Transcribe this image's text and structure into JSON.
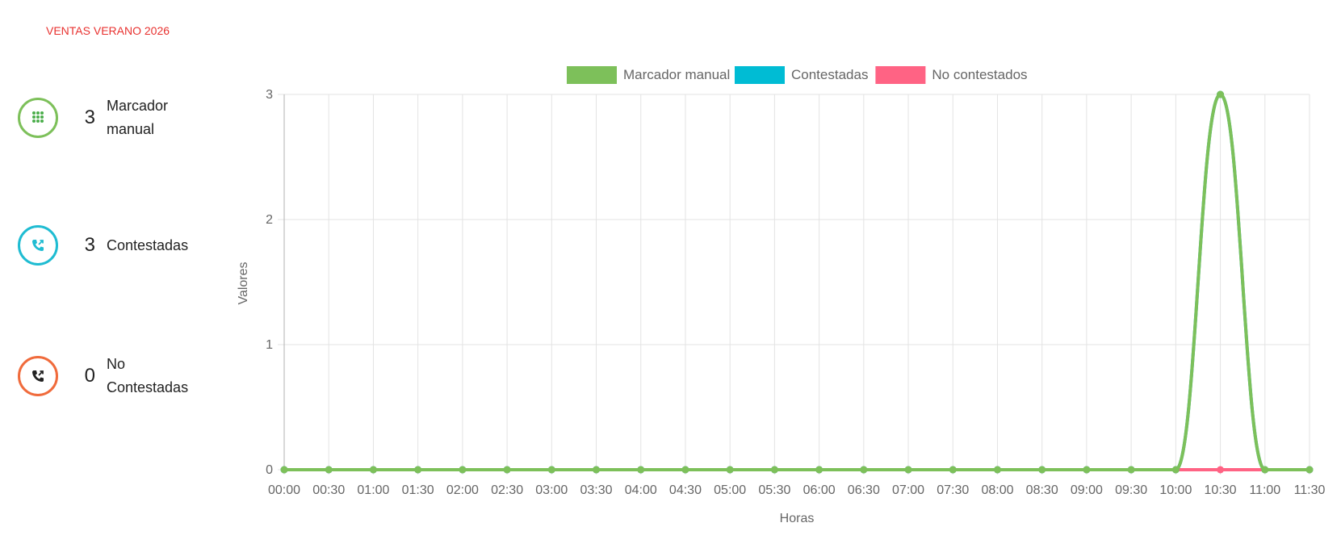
{
  "header": {
    "title": "VENTAS VERANO 2026"
  },
  "stats": [
    {
      "count": "3",
      "label": "Marcador manual",
      "icon": "dialpad-icon",
      "color": "#7dc05a"
    },
    {
      "count": "3",
      "label": "Contestadas",
      "icon": "incoming-call-icon",
      "color": "#1fbcd2"
    },
    {
      "count": "0",
      "label": "No Contestadas",
      "icon": "outgoing-call-icon",
      "color": "#f06b3c"
    }
  ],
  "chart_data": {
    "type": "line",
    "xlabel": "Horas",
    "ylabel": "Valores",
    "categories": [
      "00:00",
      "00:30",
      "01:00",
      "01:30",
      "02:00",
      "02:30",
      "03:00",
      "03:30",
      "04:00",
      "04:30",
      "05:00",
      "05:30",
      "06:00",
      "06:30",
      "07:00",
      "07:30",
      "08:00",
      "08:30",
      "09:00",
      "09:30",
      "10:00",
      "10:30",
      "11:00",
      "11:30"
    ],
    "ylim": [
      0,
      3
    ],
    "yticks": [
      0,
      1,
      2,
      3
    ],
    "grid": true,
    "legend_position": "top-center",
    "series": [
      {
        "name": "Marcador manual",
        "color": "#7dc05a",
        "values": [
          0,
          0,
          0,
          0,
          0,
          0,
          0,
          0,
          0,
          0,
          0,
          0,
          0,
          0,
          0,
          0,
          0,
          0,
          0,
          0,
          0,
          3,
          0,
          0
        ]
      },
      {
        "name": "Contestadas",
        "color": "#00bcd4",
        "values": [
          0,
          0,
          0,
          0,
          0,
          0,
          0,
          0,
          0,
          0,
          0,
          0,
          0,
          0,
          0,
          0,
          0,
          0,
          0,
          0,
          0,
          3,
          0,
          0
        ]
      },
      {
        "name": "No contestados",
        "color": "#ff6384",
        "values": [
          0,
          0,
          0,
          0,
          0,
          0,
          0,
          0,
          0,
          0,
          0,
          0,
          0,
          0,
          0,
          0,
          0,
          0,
          0,
          0,
          0,
          0,
          0,
          0
        ]
      }
    ]
  }
}
